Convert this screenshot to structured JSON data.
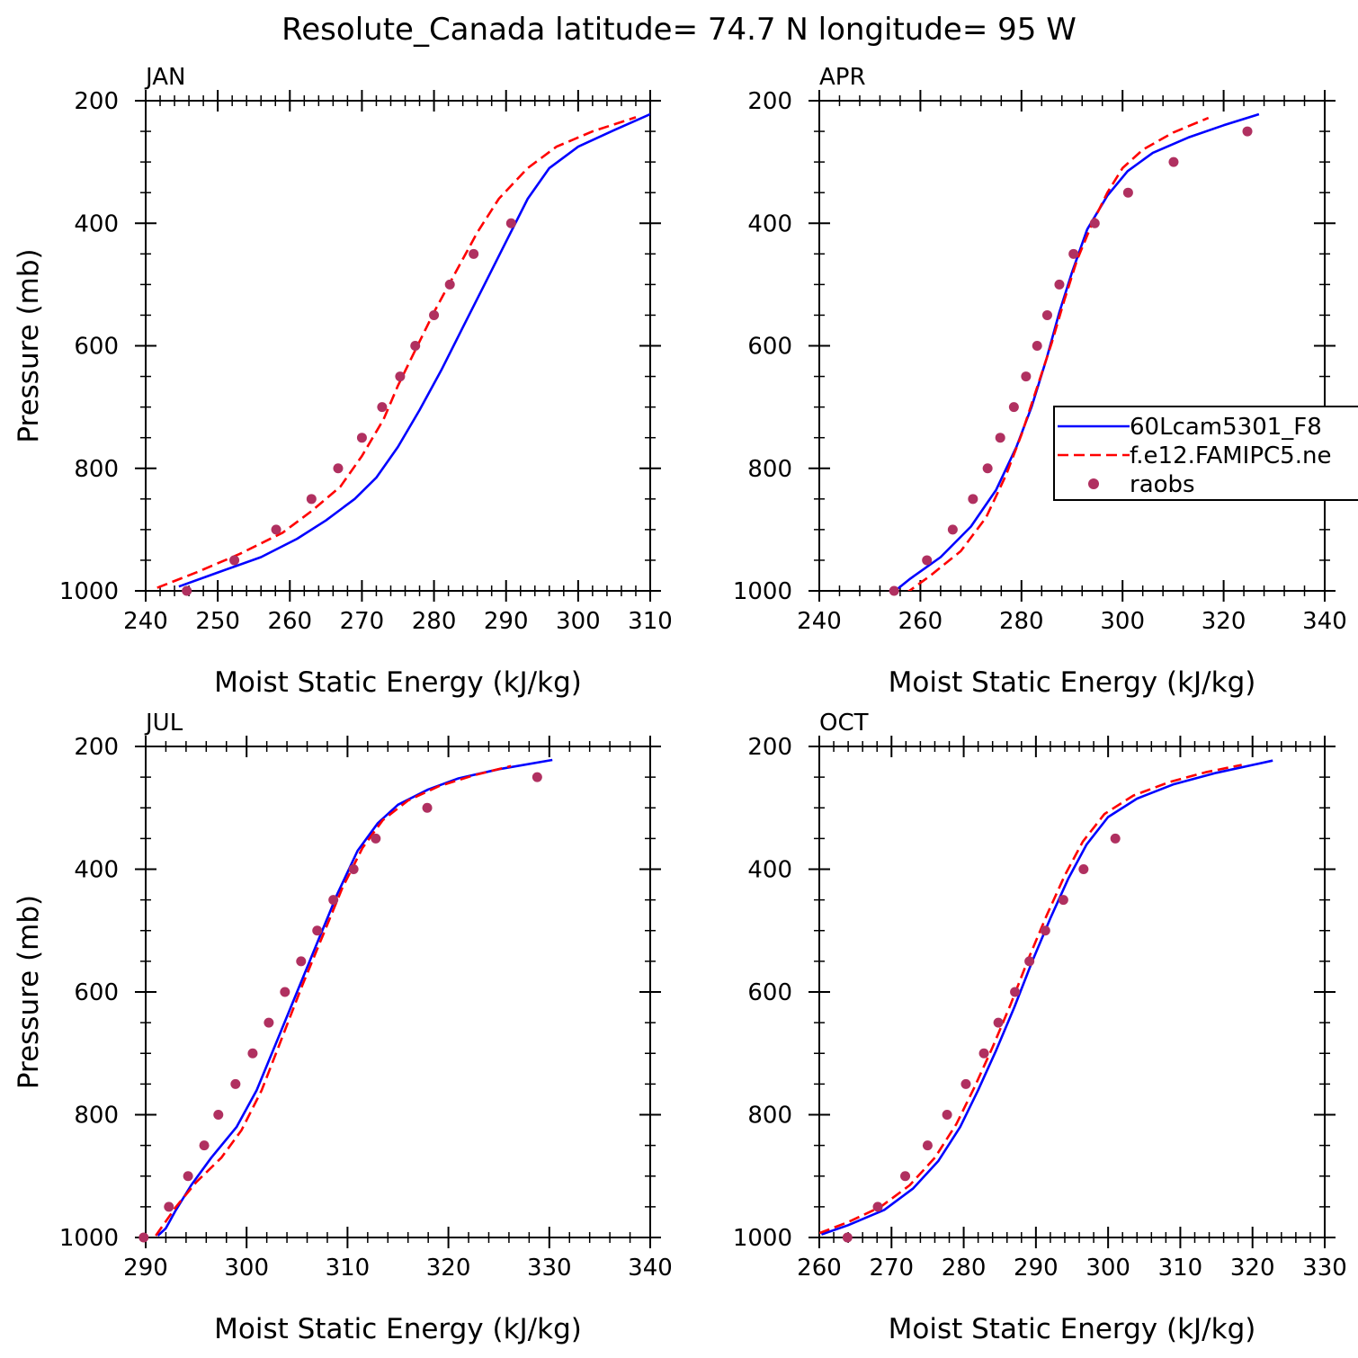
{
  "figure": {
    "title": "Resolute_Canada  latitude= 74.7 N longitude= 95 W"
  },
  "legend": {
    "entries": [
      {
        "label": "60Lcam5301_F8",
        "style": "solid",
        "color": "#0000ff"
      },
      {
        "label": "f.e12.FAMIPC5.ne",
        "style": "dashed",
        "color": "#ff0000"
      },
      {
        "label": "raobs",
        "style": "marker",
        "color": "#b03060"
      }
    ]
  },
  "chart_data": [
    {
      "type": "line",
      "panel": "JAN",
      "title": "JAN",
      "xlabel": "Moist Static Energy (kJ/kg)",
      "ylabel": "Pressure (mb)",
      "xlim": [
        240,
        310
      ],
      "ylim": [
        1000,
        200
      ],
      "xticks": [
        240,
        250,
        260,
        270,
        280,
        290,
        300,
        310
      ],
      "yticks": [
        200,
        400,
        600,
        800,
        1000
      ],
      "series": [
        {
          "name": "60Lcam5301_F8",
          "style": "solid",
          "color": "#0000ff",
          "x": [
            244.6,
            250,
            256,
            261,
            265,
            269,
            272,
            275,
            278,
            281,
            284,
            287,
            290,
            293,
            296,
            300,
            305,
            310
          ],
          "y": [
            993,
            970,
            945,
            915,
            885,
            850,
            815,
            765,
            705,
            640,
            570,
            500,
            430,
            360,
            310,
            275,
            248,
            222
          ]
        },
        {
          "name": "f.e12.FAMIPC5.ne",
          "style": "dashed",
          "color": "#ff0000",
          "x": [
            241.6,
            247,
            253,
            259,
            263,
            267,
            270,
            273,
            275,
            277.5,
            280,
            283,
            286,
            289,
            293,
            297,
            302,
            308
          ],
          "y": [
            995,
            970,
            940,
            905,
            870,
            830,
            780,
            720,
            665,
            605,
            545,
            480,
            415,
            360,
            310,
            275,
            250,
            227
          ]
        }
      ],
      "points": {
        "name": "raobs",
        "x": [
          245.7,
          252.3,
          258.1,
          263,
          266.7,
          270,
          272.8,
          275.3,
          277.4,
          280,
          282.2,
          285.5,
          290.7
        ],
        "y": [
          1000,
          950,
          900,
          850,
          800,
          750,
          700,
          650,
          600,
          550,
          500,
          450,
          400
        ]
      }
    },
    {
      "type": "line",
      "panel": "APR",
      "title": "APR",
      "xlabel": "Moist Static Energy (kJ/kg)",
      "ylabel": "",
      "xlim": [
        240,
        340
      ],
      "ylim": [
        1000,
        200
      ],
      "xticks": [
        240,
        260,
        280,
        300,
        320,
        340
      ],
      "yticks": [
        200,
        400,
        600,
        800,
        1000
      ],
      "series": [
        {
          "name": "60Lcam5301_F8",
          "style": "solid",
          "color": "#0000ff",
          "x": [
            255,
            258,
            264,
            270,
            275,
            279,
            282,
            285,
            287.5,
            290,
            293,
            297,
            301,
            306,
            313,
            320,
            327
          ],
          "y": [
            1000,
            980,
            945,
            895,
            835,
            765,
            700,
            620,
            545,
            480,
            410,
            355,
            315,
            285,
            260,
            240,
            222
          ]
        },
        {
          "name": "f.e12.FAMIPC5.ne",
          "style": "dashed",
          "color": "#ff0000",
          "x": [
            257,
            262,
            268,
            273,
            277,
            280,
            283,
            286,
            288.5,
            291,
            294,
            297,
            300,
            304,
            310,
            317
          ],
          "y": [
            1005,
            975,
            935,
            880,
            810,
            745,
            670,
            595,
            525,
            460,
            400,
            350,
            310,
            280,
            252,
            228
          ]
        }
      ],
      "points": {
        "name": "raobs",
        "x": [
          254.8,
          261.3,
          266.4,
          270.4,
          273.3,
          275.8,
          278.5,
          280.9,
          283.1,
          285.1,
          287.5,
          290.3,
          294.5,
          301.1,
          310.1,
          324.7
        ],
        "y": [
          1000,
          950,
          900,
          850,
          800,
          750,
          700,
          650,
          600,
          550,
          500,
          450,
          400,
          350,
          300,
          250
        ]
      }
    },
    {
      "type": "line",
      "panel": "JUL",
      "title": "JUL",
      "xlabel": "Moist Static Energy (kJ/kg)",
      "ylabel": "Pressure (mb)",
      "xlim": [
        290,
        340
      ],
      "ylim": [
        1000,
        200
      ],
      "xticks": [
        290,
        300,
        310,
        320,
        330,
        340
      ],
      "yticks": [
        200,
        400,
        600,
        800,
        1000
      ],
      "series": [
        {
          "name": "60Lcam5301_F8",
          "style": "solid",
          "color": "#0000ff",
          "x": [
            291.2,
            292,
            293,
            294.5,
            296.5,
            299,
            301,
            303,
            305,
            307,
            309,
            311,
            313,
            315,
            318,
            321,
            325,
            330.3
          ],
          "y": [
            997,
            985,
            955,
            915,
            870,
            820,
            760,
            680,
            600,
            520,
            440,
            370,
            325,
            295,
            270,
            252,
            237,
            222
          ]
        },
        {
          "name": "f.e12.FAMIPC5.ne",
          "style": "dashed",
          "color": "#ff0000",
          "x": [
            291,
            293,
            295,
            297.5,
            299.5,
            301.5,
            303.5,
            305.5,
            307.5,
            309.5,
            311.5,
            313.5,
            316,
            319,
            322.5,
            326.2
          ],
          "y": [
            997,
            950,
            910,
            870,
            825,
            760,
            675,
            590,
            510,
            430,
            365,
            320,
            288,
            265,
            247,
            232
          ]
        }
      ],
      "points": {
        "name": "raobs",
        "x": [
          289.8,
          292.3,
          294.2,
          295.8,
          297.2,
          298.9,
          300.6,
          302.2,
          303.8,
          305.4,
          307,
          308.6,
          310.6,
          312.8,
          317.9,
          328.8
        ],
        "y": [
          1000,
          950,
          900,
          850,
          800,
          750,
          700,
          650,
          600,
          550,
          500,
          450,
          400,
          350,
          300,
          250
        ]
      }
    },
    {
      "type": "line",
      "panel": "OCT",
      "title": "OCT",
      "xlabel": "Moist Static Energy (kJ/kg)",
      "ylabel": "",
      "xlim": [
        260,
        330
      ],
      "ylim": [
        1000,
        200
      ],
      "xticks": [
        260,
        270,
        280,
        290,
        300,
        310,
        320,
        330
      ],
      "yticks": [
        200,
        400,
        600,
        800,
        1000
      ],
      "series": [
        {
          "name": "60Lcam5301_F8",
          "style": "solid",
          "color": "#0000ff",
          "x": [
            260.3,
            264,
            269,
            273,
            276.5,
            279.5,
            282,
            284.5,
            287,
            289.5,
            292,
            294.5,
            297,
            300,
            304,
            309,
            315,
            322.8
          ],
          "y": [
            995,
            980,
            955,
            920,
            875,
            820,
            760,
            695,
            625,
            550,
            480,
            415,
            360,
            315,
            285,
            262,
            243,
            223
          ]
        },
        {
          "name": "f.e12.FAMIPC5.ne",
          "style": "dashed",
          "color": "#ff0000",
          "x": [
            260,
            264,
            268.5,
            272.5,
            276,
            279,
            281.5,
            284,
            286.5,
            289,
            291.5,
            294,
            296.5,
            299.5,
            303.5,
            308.5,
            313.5,
            318.5
          ],
          "y": [
            993,
            975,
            950,
            915,
            870,
            815,
            755,
            690,
            620,
            545,
            475,
            410,
            355,
            310,
            280,
            258,
            242,
            230
          ]
        }
      ],
      "points": {
        "name": "raobs",
        "x": [
          263.9,
          268.1,
          271.9,
          275,
          277.7,
          280.3,
          282.8,
          284.8,
          287.1,
          289.1,
          291.3,
          293.8,
          296.6,
          301
        ],
        "y": [
          1000,
          950,
          900,
          850,
          800,
          750,
          700,
          650,
          600,
          550,
          500,
          450,
          400,
          350
        ]
      }
    }
  ]
}
